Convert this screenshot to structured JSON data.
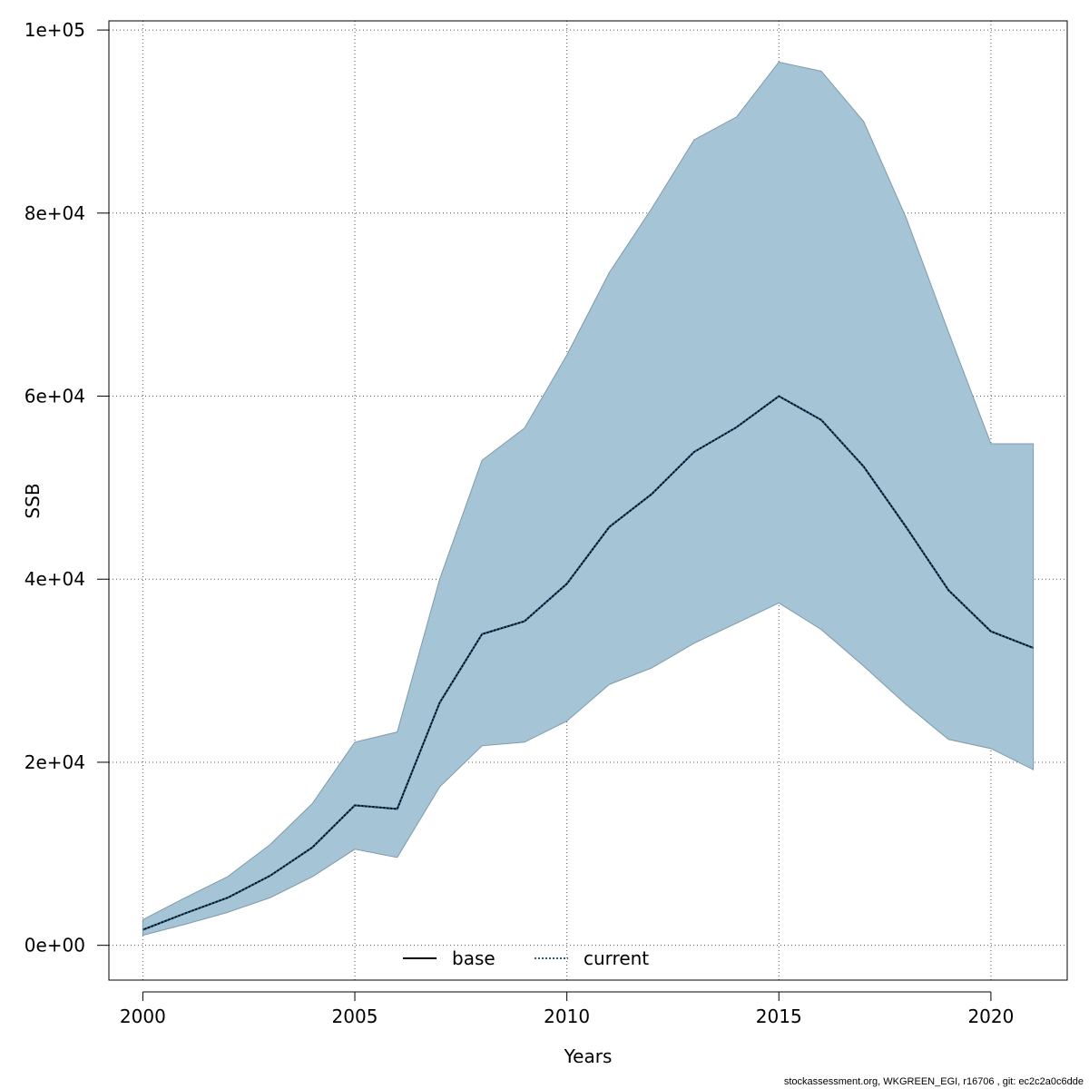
{
  "chart_data": {
    "type": "area",
    "title": "",
    "xlabel": "Years",
    "ylabel": "SSB",
    "xlim": [
      1999.2,
      2021.8
    ],
    "ylim": [
      -3800,
      101000
    ],
    "x_ticks": [
      2000,
      2005,
      2010,
      2015,
      2020
    ],
    "x_tick_labels": [
      "2000",
      "2005",
      "2010",
      "2015",
      "2020"
    ],
    "y_ticks": [
      0,
      20000,
      40000,
      60000,
      80000,
      100000
    ],
    "y_tick_labels": [
      "0e+00",
      "2e+04",
      "4e+04",
      "6e+04",
      "8e+04",
      "1e+05"
    ],
    "grid": true,
    "legend_position": "bottom-center",
    "x": [
      2000,
      2001,
      2002,
      2003,
      2004,
      2005,
      2006,
      2007,
      2008,
      2009,
      2010,
      2011,
      2012,
      2013,
      2014,
      2015,
      2016,
      2017,
      2018,
      2019,
      2020,
      2021
    ],
    "band": {
      "fill": "#a5c4d6",
      "stroke": "#7f9aa8",
      "upper": [
        2800,
        5200,
        7500,
        11000,
        15500,
        22200,
        23300,
        40000,
        53000,
        56500,
        64500,
        73500,
        80500,
        88000,
        90500,
        96500,
        95500,
        90000,
        79500,
        67000,
        54800,
        54800
      ],
      "lower": [
        1100,
        2300,
        3600,
        5200,
        7500,
        10500,
        9600,
        17300,
        21800,
        22200,
        24500,
        28500,
        30300,
        33000,
        35200,
        37400,
        34500,
        30500,
        26300,
        22500,
        21500,
        19200
      ]
    },
    "series": [
      {
        "name": "base",
        "style": "solid",
        "color": "#000000",
        "values": [
          1700,
          3500,
          5200,
          7600,
          10700,
          15300,
          14900,
          26500,
          34000,
          35400,
          39500,
          45700,
          49300,
          53900,
          56600,
          60000,
          57400,
          52300,
          45700,
          38800,
          34300,
          32500
        ]
      },
      {
        "name": "current",
        "style": "dotted",
        "color": "#1f5f8f",
        "values": [
          1700,
          3500,
          5200,
          7600,
          10700,
          15300,
          14900,
          26500,
          34000,
          35400,
          39500,
          45700,
          49300,
          53900,
          56600,
          60000,
          57400,
          52300,
          45700,
          38800,
          34300,
          32500
        ]
      }
    ]
  },
  "legend": [
    {
      "label": "base",
      "style": "solid",
      "color": "#000000"
    },
    {
      "label": "current",
      "style": "dotted",
      "color": "#1f5f8f"
    }
  ],
  "footer": "stockassessment.org, WKGREEN_EGI, r16706 , git: ec2c2a0c6dde"
}
